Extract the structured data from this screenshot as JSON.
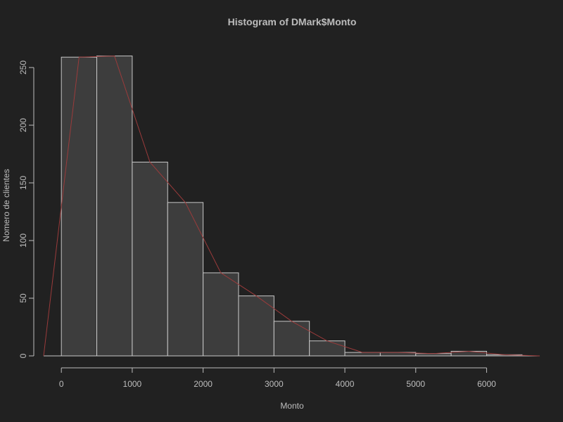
{
  "chart_data": {
    "type": "bar",
    "title": "Histogram of DMark$Monto",
    "xlabel": "Monto",
    "ylabel": "Nomero de clientes",
    "bins": [
      {
        "x0": 0,
        "x1": 500,
        "count": 259
      },
      {
        "x0": 500,
        "x1": 1000,
        "count": 260
      },
      {
        "x0": 1000,
        "x1": 1500,
        "count": 168
      },
      {
        "x0": 1500,
        "x1": 2000,
        "count": 133
      },
      {
        "x0": 2000,
        "x1": 2500,
        "count": 72
      },
      {
        "x0": 2500,
        "x1": 3000,
        "count": 52
      },
      {
        "x0": 3000,
        "x1": 3500,
        "count": 30
      },
      {
        "x0": 3500,
        "x1": 4000,
        "count": 13
      },
      {
        "x0": 4000,
        "x1": 4500,
        "count": 3
      },
      {
        "x0": 4500,
        "x1": 5000,
        "count": 3
      },
      {
        "x0": 5000,
        "x1": 5500,
        "count": 2
      },
      {
        "x0": 5500,
        "x1": 6000,
        "count": 4
      },
      {
        "x0": 6000,
        "x1": 6500,
        "count": 1
      }
    ],
    "frequency_polygon": {
      "x": [
        -250,
        250,
        750,
        1250,
        1750,
        2250,
        2750,
        3250,
        3750,
        4250,
        4750,
        5250,
        5750,
        6250,
        6750
      ],
      "y": [
        0,
        259,
        260,
        168,
        133,
        72,
        52,
        30,
        13,
        3,
        3,
        2,
        4,
        1,
        0
      ]
    },
    "x_ticks": [
      "0",
      "1000",
      "2000",
      "3000",
      "4000",
      "5000",
      "6000"
    ],
    "y_ticks": [
      "0",
      "50",
      "100",
      "150",
      "200",
      "250"
    ],
    "xlim": [
      -250,
      6750
    ],
    "ylim": [
      0,
      260
    ],
    "grid": false,
    "colors": {
      "background": "#212121",
      "bar_fill": "#3d3d3d",
      "bar_stroke": "#c8c8c8",
      "axis": "#bdbdbd",
      "polygon": "#9b3b3b"
    }
  }
}
